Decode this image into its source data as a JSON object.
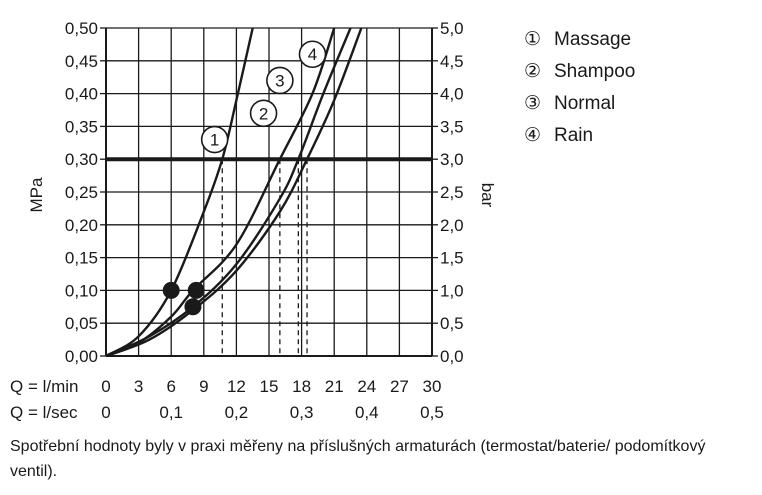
{
  "chart_data": {
    "type": "line",
    "xlabel": "Q = l/min",
    "xlabel_secondary": "Q = l/sec",
    "ylabel": "MPa",
    "ylabel_right": "bar",
    "xlim": [
      0,
      30
    ],
    "ylim": [
      0,
      0.5
    ],
    "ylim_right": [
      0,
      5.0
    ],
    "x_ticks": [
      "0",
      "3",
      "6",
      "9",
      "12",
      "15",
      "18",
      "21",
      "24",
      "27",
      "30"
    ],
    "x_ticks_secondary": [
      "0",
      "0,1",
      "0,2",
      "0,3",
      "0,4",
      "0,5"
    ],
    "y_ticks": [
      "0,00",
      "0,05",
      "0,10",
      "0,15",
      "0,20",
      "0,25",
      "0,30",
      "0,35",
      "0,40",
      "0,45",
      "0,50"
    ],
    "y_ticks_right": [
      "0,0",
      "0,5",
      "1,0",
      "1,5",
      "2,0",
      "2,5",
      "3,0",
      "3,5",
      "4,0",
      "4,5",
      "5,0"
    ],
    "grid": true,
    "reference_line": {
      "y": 0.3
    },
    "series": [
      {
        "name": "Massage",
        "marker": "1",
        "x": [
          0,
          3,
          6,
          9,
          10.7,
          12,
          13.5
        ],
        "y": [
          0,
          0.03,
          0.1,
          0.22,
          0.3,
          0.39,
          0.5
        ],
        "drop_x": 10.7,
        "dot": [
          6,
          0.1
        ]
      },
      {
        "name": "Shampoo",
        "marker": "2",
        "x": [
          0,
          3,
          6,
          8,
          12,
          16,
          19,
          21
        ],
        "y": [
          0,
          0.02,
          0.06,
          0.1,
          0.17,
          0.3,
          0.4,
          0.5
        ],
        "drop_x": 16,
        "dot": [
          8.3,
          0.1
        ]
      },
      {
        "name": "Normal",
        "marker": "3",
        "x": [
          0,
          4,
          8,
          12,
          16,
          17.7,
          20,
          22.5
        ],
        "y": [
          0,
          0.03,
          0.075,
          0.14,
          0.24,
          0.3,
          0.4,
          0.5
        ],
        "drop_x": 17.7,
        "dot": [
          8,
          0.075
        ]
      },
      {
        "name": "Rain",
        "marker": "4",
        "x": [
          0,
          4,
          8,
          12,
          16,
          18.5,
          21,
          23.5
        ],
        "y": [
          0,
          0.025,
          0.07,
          0.13,
          0.22,
          0.3,
          0.39,
          0.5
        ],
        "drop_x": 18.5
      }
    ],
    "legend_position": "top-right"
  },
  "legend": [
    {
      "symbol": "①",
      "label": "Massage"
    },
    {
      "symbol": "②",
      "label": "Shampoo"
    },
    {
      "symbol": "③",
      "label": "Normal"
    },
    {
      "symbol": "④",
      "label": "Rain"
    }
  ],
  "caption": "Spotřební hodnoty byly v praxi měřeny na příslušných armaturách (termostat/baterie/ podomítkový ventil)."
}
